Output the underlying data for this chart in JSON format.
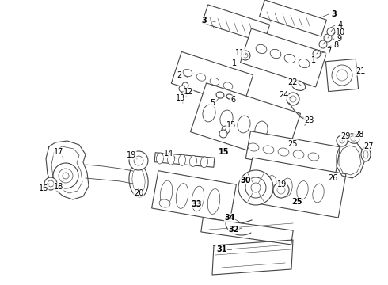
{
  "bg": "#ffffff",
  "lc": "#444444",
  "tc": "#000000",
  "lw": 0.8,
  "fig_w": 4.9,
  "fig_h": 3.6,
  "dpi": 100
}
